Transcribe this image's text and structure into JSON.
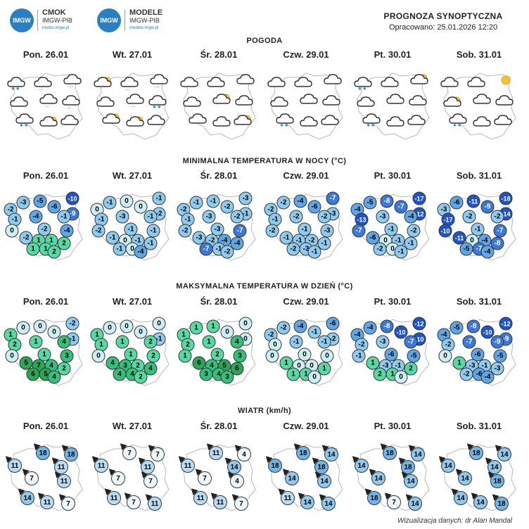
{
  "header": {
    "logo1": {
      "mark": "IMGW",
      "name": "CMOK",
      "org": "IMGW-PIB",
      "url": "meteo.imgw.pl"
    },
    "logo2": {
      "mark": "IMGW",
      "name": "MODELE",
      "org": "IMGW-PIB",
      "url": "modele.imgw.pl"
    },
    "title": "PROGNOZA SYNOPTYCZNA",
    "prepared": "Opracowano: 25.01.2026 12:20"
  },
  "days": [
    "Pon. 26.01",
    "Wt. 27.01",
    "Śr. 28.01",
    "Czw. 29.01",
    "Pt. 30.01",
    "Sob. 31.01"
  ],
  "sections": {
    "weather": "POGODA",
    "tmin": "MINIMALNA TEMPERATURA W NOCY (°C)",
    "tmax": "MAKSYMALNA TEMPERATURA W DZIEŃ (°C)",
    "wind": "WIATR (km/h)"
  },
  "colors": {
    "cold_dark": "#1e4fc2",
    "cold": "#5ea6e6",
    "cool": "#a9dbf2",
    "zero": "#d9f4f3",
    "mild": "#7fe3c3",
    "warm": "#2fc98a",
    "warmer": "#2fae5a"
  },
  "weather_icons": {
    "cloud": "cloud-icon",
    "cloud_snow": "cloud-snow-icon",
    "cloud_rain": "cloud-rain-icon",
    "partly_sunny": "partly-sunny-icon",
    "sun": "sun-icon"
  },
  "weather": [
    [
      "cloud_snow",
      "cloud_rain",
      "cloud_rain",
      "cloud",
      "cloud_rain",
      "cloud_rain",
      "cloud_snow",
      "partly_sunny",
      "cloud"
    ],
    [
      "partly_sunny",
      "cloud_rain",
      "cloud_rain",
      "cloud",
      "cloud_rain",
      "cloud_snow",
      "partly_sunny",
      "partly_sunny",
      "cloud"
    ],
    [
      "cloud",
      "cloud",
      "cloud",
      "cloud",
      "partly_sunny",
      "cloud",
      "cloud",
      "cloud",
      "partly_sunny"
    ],
    [
      "cloud",
      "cloud",
      "cloud",
      "cloud",
      "cloud",
      "cloud",
      "cloud_snow",
      "cloud",
      "cloud"
    ],
    [
      "cloud_snow",
      "cloud",
      "partly_sunny",
      "cloud",
      "cloud",
      "cloud",
      "cloud_snow",
      "cloud",
      "cloud"
    ],
    [
      "cloud",
      "cloud",
      "sun",
      "partly_sunny",
      "cloud",
      "cloud",
      "cloud_snow",
      "cloud",
      "cloud"
    ]
  ],
  "tmin": [
    [
      "-3",
      "-5",
      "-10",
      "-2",
      "-6",
      "-9",
      "-1",
      "-4",
      "-1",
      "0",
      "-2",
      "-4",
      "-2",
      "1",
      "1",
      "2",
      "1",
      "1",
      "2"
    ],
    [
      "-1",
      "0",
      "-1",
      "0",
      "0",
      "-2",
      "-1",
      "-3",
      "-1",
      "-2",
      "-1",
      "-1",
      "-1",
      "0",
      "-1",
      "-1",
      "-1",
      "0",
      "-4"
    ],
    [
      "-1",
      "-1",
      "-3",
      "-2",
      "-2",
      "-1",
      "-1",
      "-3",
      "-2",
      "-2",
      "-3",
      "-7",
      "-3",
      "-2",
      "-4",
      "-4",
      "-7",
      "-1",
      "-2"
    ],
    [
      "-2",
      "-4",
      "-7",
      "-2",
      "-6",
      "-3",
      "-1",
      "-2",
      "-2",
      "-2",
      "-1",
      "-3",
      "-1",
      "-1",
      "-2",
      "-1",
      "-2",
      "-3",
      "-1"
    ],
    [
      "-5",
      "-8",
      "-17",
      "-4",
      "-7",
      "-12",
      "-13",
      "-3",
      "-4",
      "-7",
      "-1",
      "-2",
      "-6",
      "0",
      "-1",
      "-1",
      "-2",
      "0",
      "-1"
    ],
    [
      "-6",
      "-11",
      "-18",
      "-3",
      "-9",
      "-14",
      "-17",
      "-2",
      "-2",
      "-10",
      "-1",
      "-7",
      "-11",
      "0",
      "-4",
      "-8",
      "-5",
      "-7",
      "-4"
    ]
  ],
  "tmax": [
    [
      "0",
      "0",
      "-2",
      "1",
      "0",
      "-1",
      "2",
      "1",
      "4",
      "0",
      "1",
      "3",
      "5",
      "7",
      "4",
      "2",
      "6",
      "5",
      "4"
    ],
    [
      "0",
      "0",
      "0",
      "1",
      "0",
      "-1",
      "1",
      "1",
      "2",
      "0",
      "1",
      "2",
      "4",
      "3",
      "2",
      "4",
      "4",
      "4",
      "2"
    ],
    [
      "1",
      "1",
      "0",
      "1",
      "0",
      "0",
      "2",
      "1",
      "4",
      "1",
      "2",
      "3",
      "6",
      "4",
      "5",
      "6",
      "3",
      "4",
      "3"
    ],
    [
      "-2",
      "-4",
      "-6",
      "-2",
      "-1",
      "-2",
      "0",
      "-1",
      "-1",
      "0",
      "0",
      "0",
      "1",
      "0",
      "0",
      "1",
      "1",
      "1",
      "0"
    ],
    [
      "-4",
      "-8",
      "-12",
      "-4",
      "-10",
      "-10",
      "-2",
      "-3",
      "-7",
      "-1",
      "-6",
      "-5",
      "1",
      "-3",
      "-1",
      "2",
      "2",
      "1",
      "0"
    ],
    [
      "-5",
      "-8",
      "-12",
      "-4",
      "-10",
      "-9",
      "-2",
      "-7",
      "-9",
      "0",
      "-6",
      "-5",
      "1",
      "-3",
      "-1",
      "-3",
      "-2",
      "-6",
      "-4"
    ]
  ],
  "wind": [
    [
      "11",
      "18",
      "18",
      "7",
      "11",
      "14",
      "11",
      "7",
      "11"
    ],
    [
      "11",
      "7",
      "7",
      "7",
      "7",
      "11",
      "7",
      "11",
      "11"
    ],
    [
      "11",
      "11",
      "4",
      "7",
      "4",
      "11",
      "11",
      "7",
      "14"
    ],
    [
      "18",
      "18",
      "14",
      "14",
      "14",
      "11",
      "14",
      "14",
      "18"
    ],
    [
      "14",
      "18",
      "14",
      "14",
      "14",
      "18",
      "7",
      "14",
      "18"
    ],
    [
      "14",
      "18",
      "14",
      "14",
      "18",
      "14",
      "14",
      "18",
      "14"
    ]
  ],
  "footer": "Wizualizacja danych: dr Alan Mandal"
}
